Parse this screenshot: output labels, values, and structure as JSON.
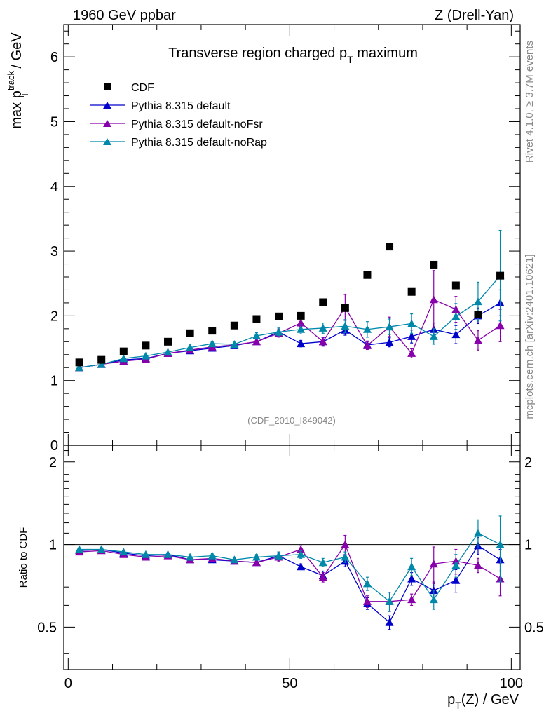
{
  "header": {
    "left": "1960 GeV ppbar",
    "right": "Z (Drell-Yan)"
  },
  "side": {
    "rivet": "Rivet 4.1.0, ≥ 3.7M events",
    "mcplots": "mcplots.cern.ch [arXiv:2401.10621]"
  },
  "chart_data": {
    "type": "scatter",
    "title": "Transverse region charged p_T maximum",
    "title_main": "Transverse region charged p",
    "title_sub": "T",
    "title_end": " maximum",
    "watermark": "(CDF_2010_I849042)",
    "ylabel_main": "max p",
    "ylabel_sup": "track",
    "ylabel_sub": "T",
    "ylabel_unit": " / GeV",
    "xlabel_main": "p",
    "xlabel_sub": "T",
    "xlabel_end": "(Z) / GeV",
    "ratio_ylabel": "Ratio to CDF",
    "xlim": [
      -1,
      102
    ],
    "ylim": [
      0,
      6.5
    ],
    "ratio_ylim": [
      0.35,
      2.3
    ],
    "x_ticks": [
      "0",
      "50",
      "100"
    ],
    "y_ticks": [
      "0",
      "1",
      "2",
      "3",
      "4",
      "5",
      "6"
    ],
    "ratio_ticks": [
      "0.5",
      "1",
      "2"
    ],
    "x": [
      2.5,
      7.5,
      12.5,
      17.5,
      22.5,
      27.5,
      32.5,
      37.5,
      42.5,
      47.5,
      52.5,
      57.5,
      62.5,
      67.5,
      72.5,
      77.5,
      82.5,
      87.5,
      92.5,
      97.5
    ],
    "data": {
      "name": "CDF",
      "values": [
        1.28,
        1.32,
        1.45,
        1.54,
        1.6,
        1.73,
        1.77,
        1.85,
        1.95,
        1.99,
        2.0,
        2.21,
        2.12,
        2.63,
        3.07,
        2.37,
        2.79,
        2.47,
        2.02,
        2.62
      ]
    },
    "series": [
      {
        "name": "Pythia 8.315 default",
        "color": "#0000cc",
        "values": [
          1.2,
          1.25,
          1.32,
          1.34,
          1.42,
          1.46,
          1.5,
          1.54,
          1.6,
          1.75,
          1.57,
          1.6,
          1.78,
          1.55,
          1.59,
          1.68,
          1.79,
          1.71,
          2.0,
          2.2
        ],
        "errors": [
          0.01,
          0.01,
          0.01,
          0.02,
          0.02,
          0.02,
          0.03,
          0.03,
          0.04,
          0.06,
          0.05,
          0.06,
          0.08,
          0.06,
          0.07,
          0.1,
          0.1,
          0.14,
          0.12,
          0.2
        ],
        "ratio": [
          0.95,
          0.96,
          0.93,
          0.91,
          0.92,
          0.88,
          0.88,
          0.87,
          0.86,
          0.91,
          0.83,
          0.77,
          0.87,
          0.61,
          0.52,
          0.75,
          0.68,
          0.74,
          0.99,
          0.88
        ],
        "ratio_errors": [
          0.01,
          0.01,
          0.01,
          0.01,
          0.01,
          0.01,
          0.02,
          0.02,
          0.02,
          0.03,
          0.02,
          0.03,
          0.04,
          0.03,
          0.03,
          0.04,
          0.05,
          0.07,
          0.07,
          0.08
        ]
      },
      {
        "name": "Pythia 8.315 default-noFsr",
        "color": "#8800aa",
        "values": [
          1.2,
          1.25,
          1.3,
          1.33,
          1.42,
          1.47,
          1.52,
          1.55,
          1.6,
          1.73,
          1.89,
          1.6,
          2.13,
          1.54,
          1.83,
          1.42,
          2.25,
          2.1,
          1.62,
          1.85
        ],
        "errors": [
          0.01,
          0.01,
          0.01,
          0.02,
          0.02,
          0.02,
          0.03,
          0.03,
          0.04,
          0.06,
          0.06,
          0.07,
          0.2,
          0.06,
          0.15,
          0.07,
          0.45,
          0.2,
          0.15,
          0.25
        ],
        "ratio": [
          0.94,
          0.95,
          0.92,
          0.9,
          0.91,
          0.88,
          0.89,
          0.87,
          0.86,
          0.9,
          0.96,
          0.76,
          1.0,
          0.62,
          0.62,
          0.63,
          0.85,
          0.87,
          0.84,
          0.75
        ],
        "ratio_errors": [
          0.01,
          0.01,
          0.01,
          0.01,
          0.01,
          0.01,
          0.02,
          0.02,
          0.02,
          0.03,
          0.03,
          0.03,
          0.08,
          0.03,
          0.05,
          0.03,
          0.13,
          0.09,
          0.05,
          0.1
        ]
      },
      {
        "name": "Pythia 8.315 default-noRap",
        "color": "#0088aa",
        "values": [
          1.2,
          1.25,
          1.34,
          1.38,
          1.44,
          1.51,
          1.57,
          1.56,
          1.69,
          1.75,
          1.79,
          1.81,
          1.84,
          1.79,
          1.83,
          1.88,
          1.68,
          1.99,
          2.22,
          2.62
        ],
        "errors": [
          0.01,
          0.01,
          0.01,
          0.02,
          0.02,
          0.02,
          0.03,
          0.03,
          0.05,
          0.06,
          0.07,
          0.08,
          0.1,
          0.12,
          0.12,
          0.15,
          0.12,
          0.2,
          0.3,
          0.7
        ],
        "ratio": [
          0.96,
          0.96,
          0.94,
          0.92,
          0.92,
          0.9,
          0.91,
          0.88,
          0.9,
          0.91,
          0.92,
          0.86,
          0.9,
          0.72,
          0.62,
          0.83,
          0.63,
          0.84,
          1.1,
          1.0
        ],
        "ratio_errors": [
          0.01,
          0.01,
          0.01,
          0.01,
          0.01,
          0.01,
          0.02,
          0.02,
          0.02,
          0.03,
          0.03,
          0.03,
          0.04,
          0.04,
          0.05,
          0.06,
          0.05,
          0.08,
          0.13,
          0.27
        ]
      }
    ]
  }
}
